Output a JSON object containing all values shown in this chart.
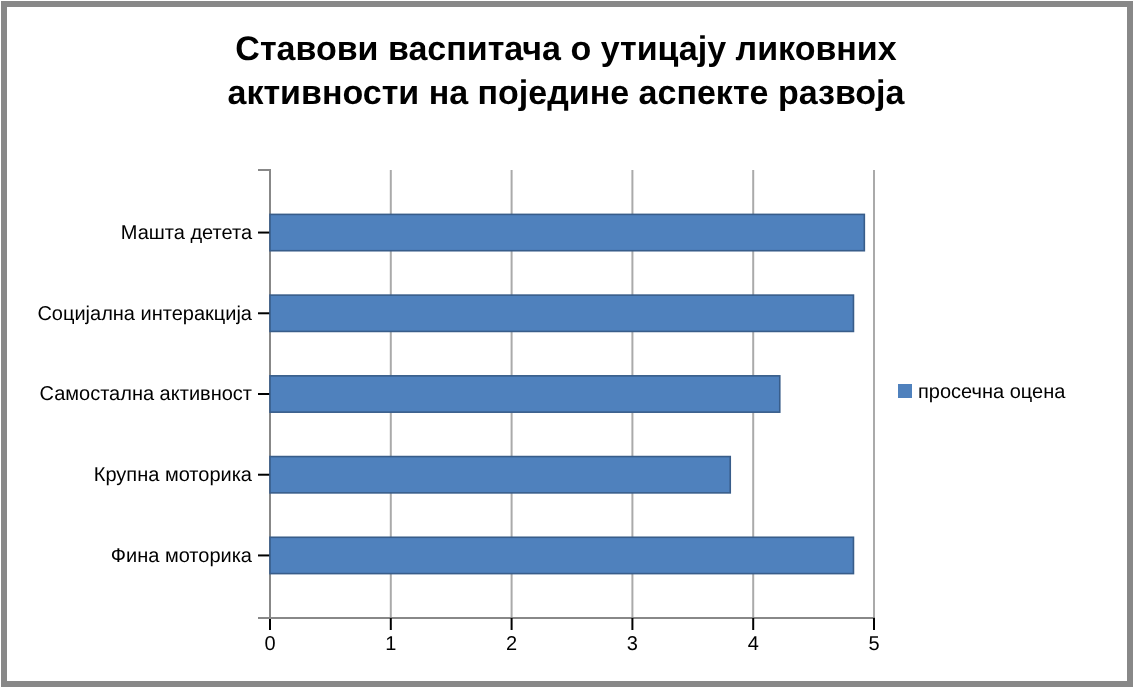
{
  "chart_data": {
    "type": "bar",
    "orientation": "horizontal",
    "title": "Ставови васпитача о утицају ликовних активности на поједине аспекте развоја",
    "categories": [
      "Машта детета",
      "Социјална интеракција",
      "Самостална активност",
      "Крупна моторика",
      "Фина моторика"
    ],
    "series": [
      {
        "name": "просечна оцена",
        "color": "#4f81bd",
        "values": [
          4.92,
          4.83,
          4.22,
          3.81,
          4.83
        ]
      }
    ],
    "xlim": [
      0,
      5
    ],
    "xticks": [
      0,
      1,
      2,
      3,
      4,
      5
    ],
    "grid": "x",
    "legend": "right"
  }
}
